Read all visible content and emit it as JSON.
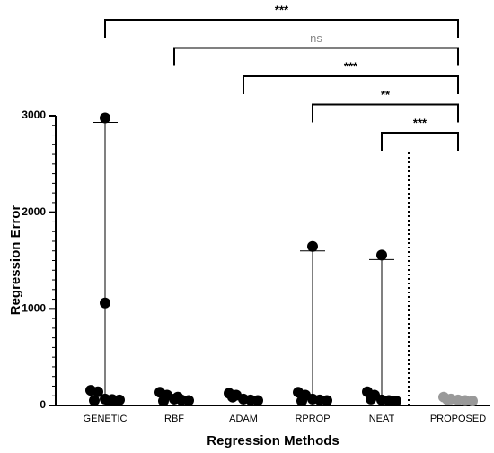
{
  "chart_data": {
    "type": "dot",
    "y_label": "Regression Error",
    "x_label": "Regression Methods",
    "categories": [
      "GENETIC",
      "RBF",
      "ADAM",
      "RPROP",
      "NEAT",
      "PROPOSED"
    ],
    "values": [
      [
        2930,
        1015,
        110,
        95,
        20,
        15,
        10,
        5,
        5,
        0
      ],
      [
        90,
        60,
        20,
        10,
        5,
        0,
        40
      ],
      [
        80,
        60,
        20,
        10,
        5,
        40
      ],
      [
        1600,
        90,
        60,
        20,
        10,
        5,
        0
      ],
      [
        1510,
        95,
        60,
        10,
        5,
        0,
        20
      ],
      [
        40,
        20,
        10,
        5,
        0,
        15
      ]
    ],
    "colors": [
      "#000000",
      "#000000",
      "#000000",
      "#000000",
      "#000000",
      "#999999"
    ],
    "ylim": [
      0,
      3000
    ],
    "yticks": [
      0,
      1000,
      2000,
      3000
    ],
    "comparisons": [
      {
        "groups": [
          "GENETIC",
          "PROPOSED"
        ],
        "label": "***",
        "color": "#000000"
      },
      {
        "groups": [
          "RBF",
          "PROPOSED"
        ],
        "label": "ns",
        "color": "#888888"
      },
      {
        "groups": [
          "ADAM",
          "PROPOSED"
        ],
        "label": "***",
        "color": "#000000"
      },
      {
        "groups": [
          "RPROP",
          "PROPOSED"
        ],
        "label": "**",
        "color": "#000000"
      },
      {
        "groups": [
          "NEAT",
          "PROPOSED"
        ],
        "label": "***",
        "color": "#000000"
      }
    ]
  }
}
